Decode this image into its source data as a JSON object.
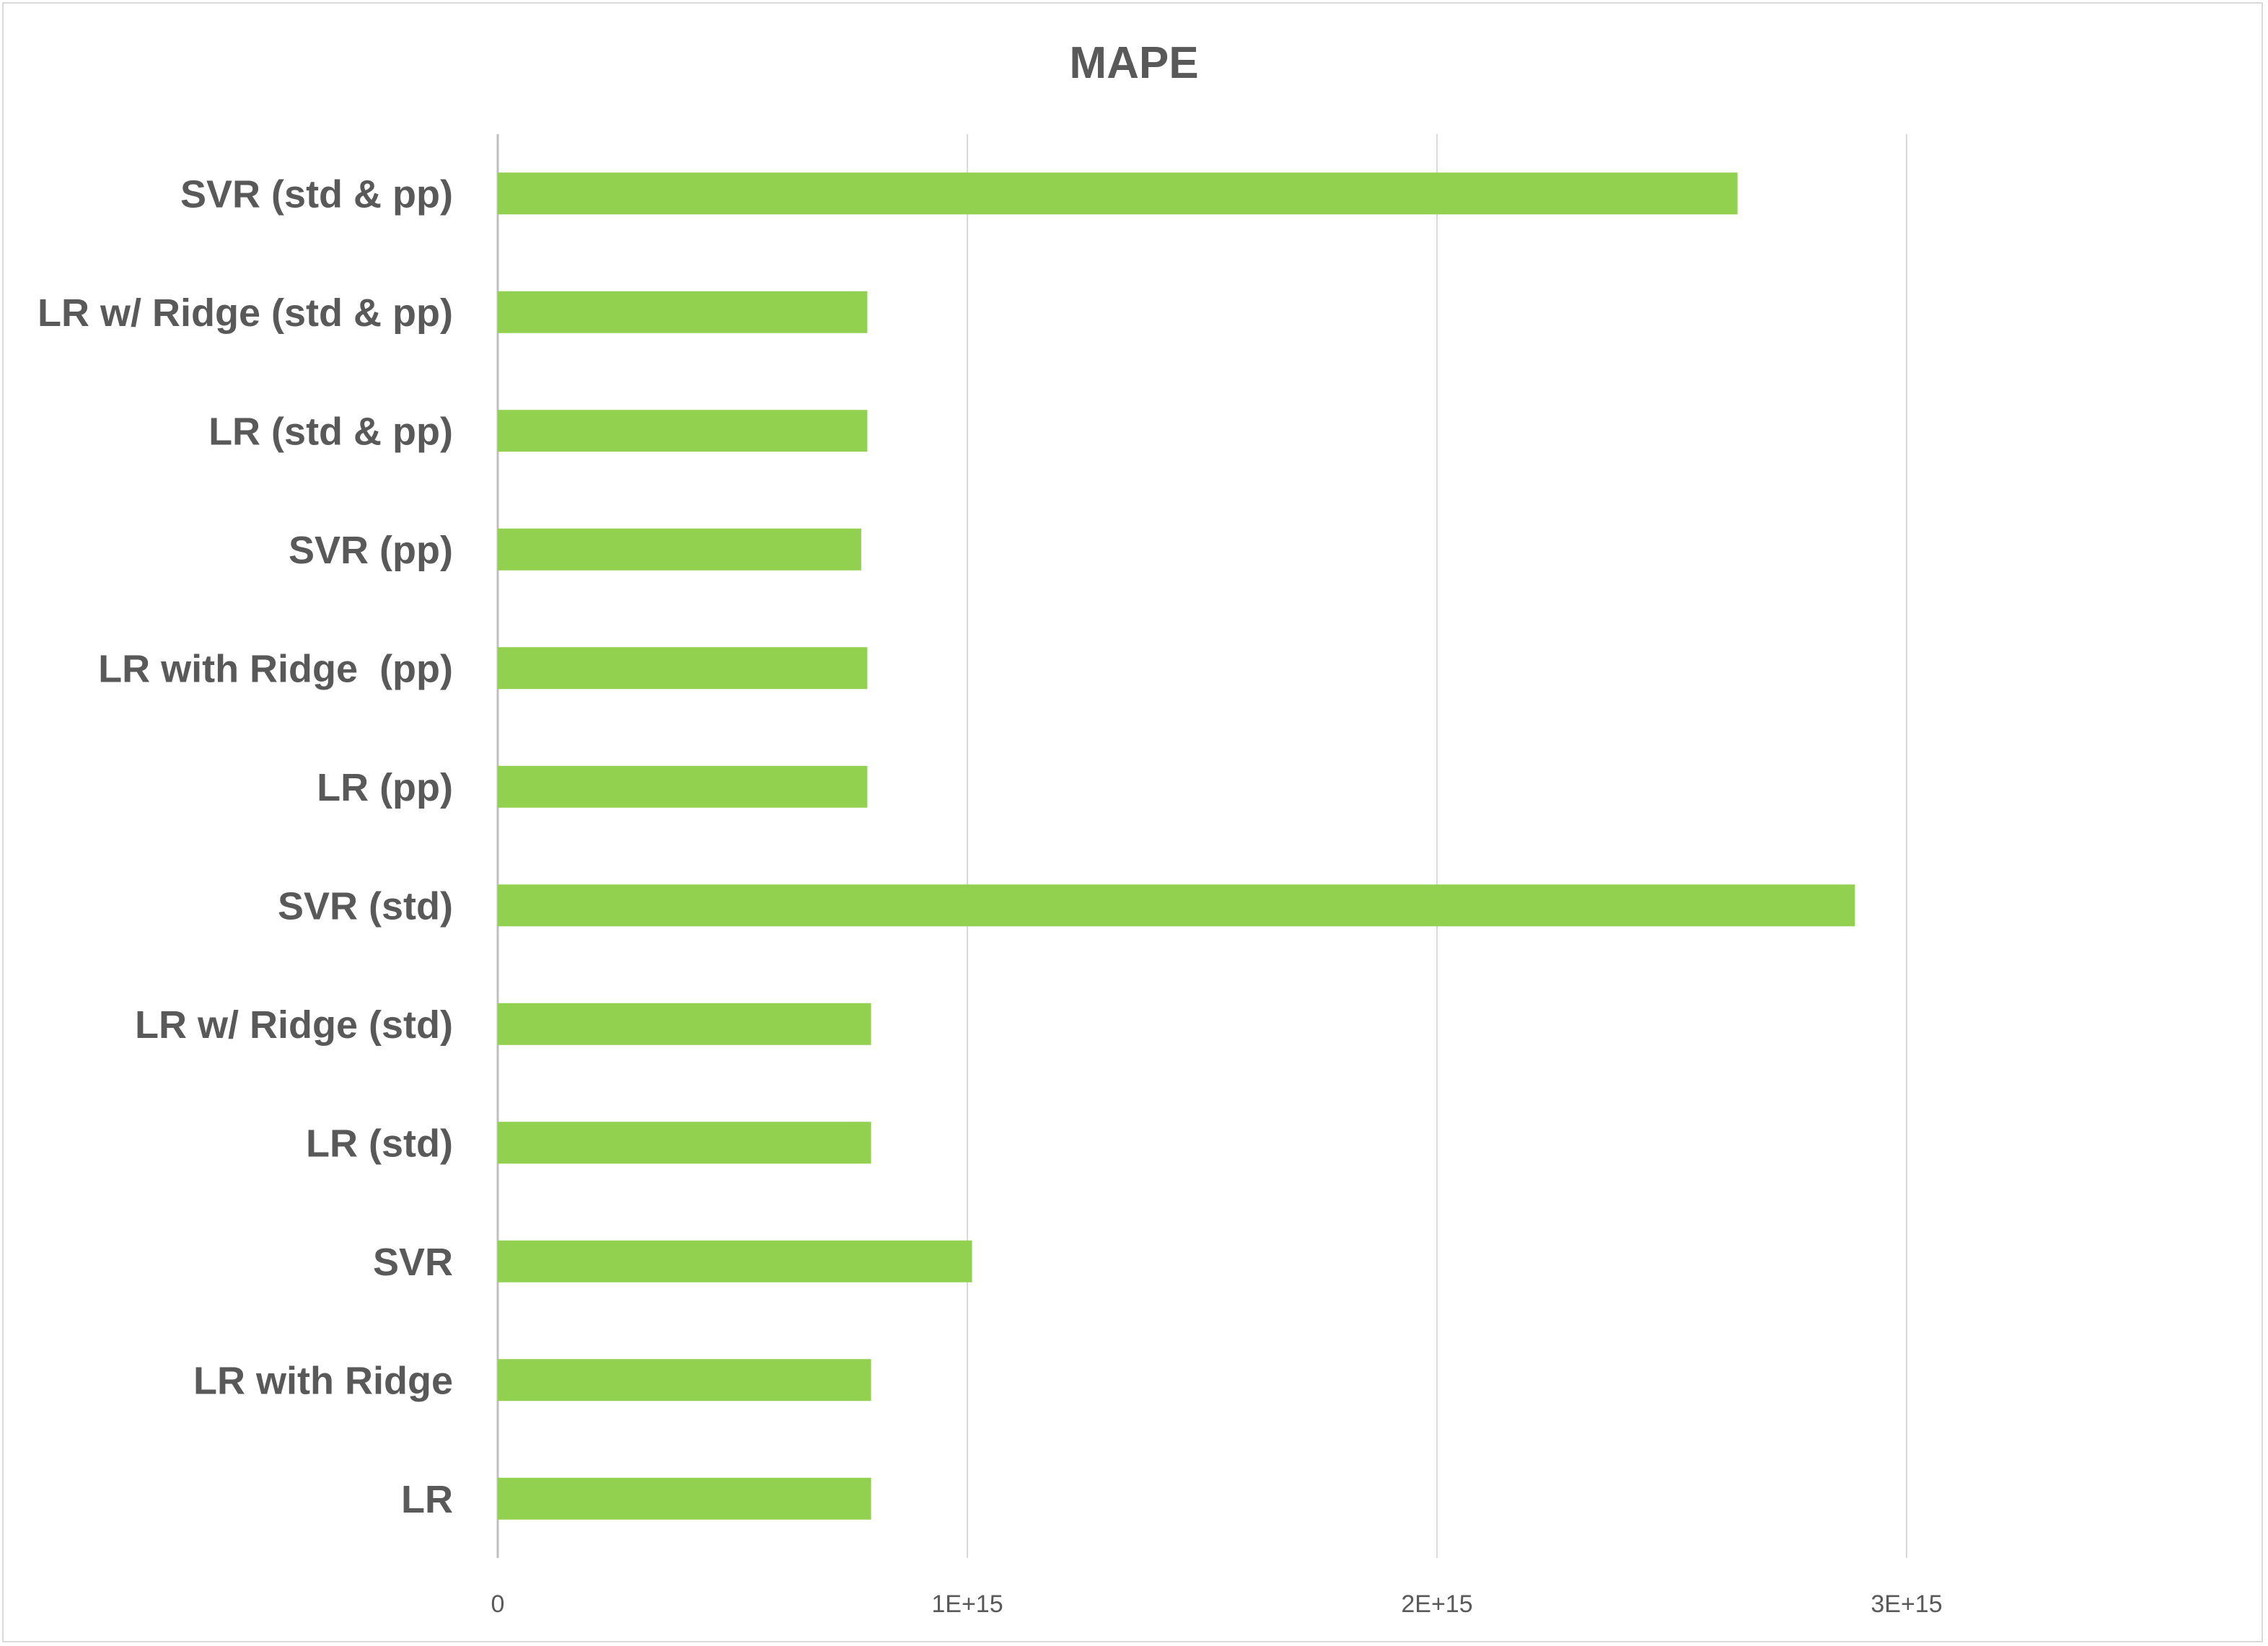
{
  "chart_data": {
    "type": "bar",
    "orientation": "horizontal",
    "title": "MAPE",
    "xlabel": "",
    "ylabel": "",
    "categories": [
      "LR",
      "LR with Ridge",
      "SVR",
      "LR (std)",
      "LR w/ Ridge (std)",
      "SVR (std)",
      "LR (pp)",
      "LR with Ridge  (pp)",
      "SVR (pp)",
      "LR (std & pp)",
      "LR w/ Ridge (std & pp)",
      "SVR (std & pp)"
    ],
    "values": [
      795000000000000.0,
      795000000000000.0,
      1010000000000000.0,
      795000000000000.0,
      795000000000000.0,
      2890000000000000.0,
      787000000000000.0,
      787000000000000.0,
      774000000000000.0,
      787000000000000.0,
      787000000000000.0,
      2640000000000000.0
    ],
    "xlim": [
      0,
      3500000000000000.0
    ],
    "ticks": [
      0,
      1000000000000000.0,
      2000000000000000.0,
      3000000000000000.0
    ],
    "tick_labels": [
      "0",
      "1E+15",
      "2E+15",
      "3E+15"
    ],
    "grid": "vertical",
    "legend": "none",
    "bar_color": "#92d050"
  }
}
